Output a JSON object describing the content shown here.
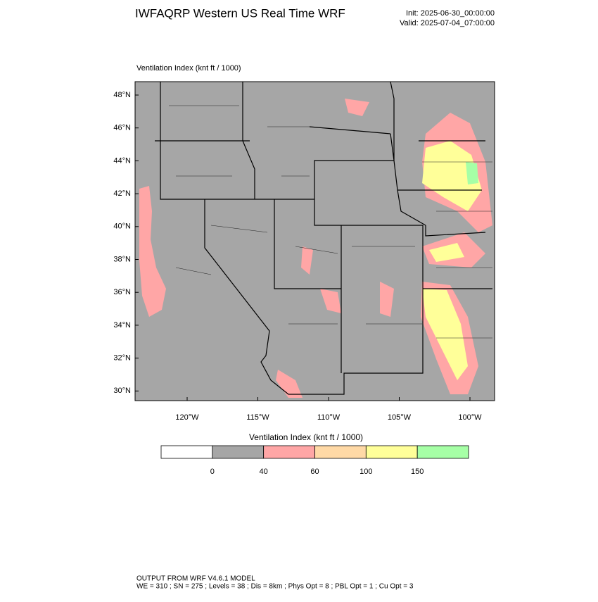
{
  "header": {
    "title": "IWFAQRP Western US Real Time WRF",
    "init": "Init: 2025-06-30_00:00:00",
    "valid": "Valid: 2025-07-04_07:00:00"
  },
  "map": {
    "subtitle": "Ventilation Index   (knt ft / 1000)",
    "lat_labels": [
      "48°N",
      "46°N",
      "44°N",
      "42°N",
      "40°N",
      "38°N",
      "36°N",
      "34°N",
      "32°N",
      "30°N"
    ],
    "lon_labels": [
      "120°W",
      "115°W",
      "110°W",
      "105°W",
      "100°W"
    ]
  },
  "colorbar": {
    "title": "Ventilation Index   (knt ft / 1000)",
    "colors": [
      "#ffffff",
      "#a6a6a6",
      "#ffa6a6",
      "#ffd9a6",
      "#ffff99",
      "#a6ffa6"
    ],
    "labels": [
      "0",
      "40",
      "60",
      "100",
      "150"
    ]
  },
  "footer": {
    "line1": "OUTPUT FROM WRF V4.6.1 MODEL",
    "line2": "WE = 310 ; SN = 275 ; Levels = 38 ; Dis = 8km ; Phys Opt = 8 ; PBL Opt = 1 ; Cu Opt = 3"
  }
}
